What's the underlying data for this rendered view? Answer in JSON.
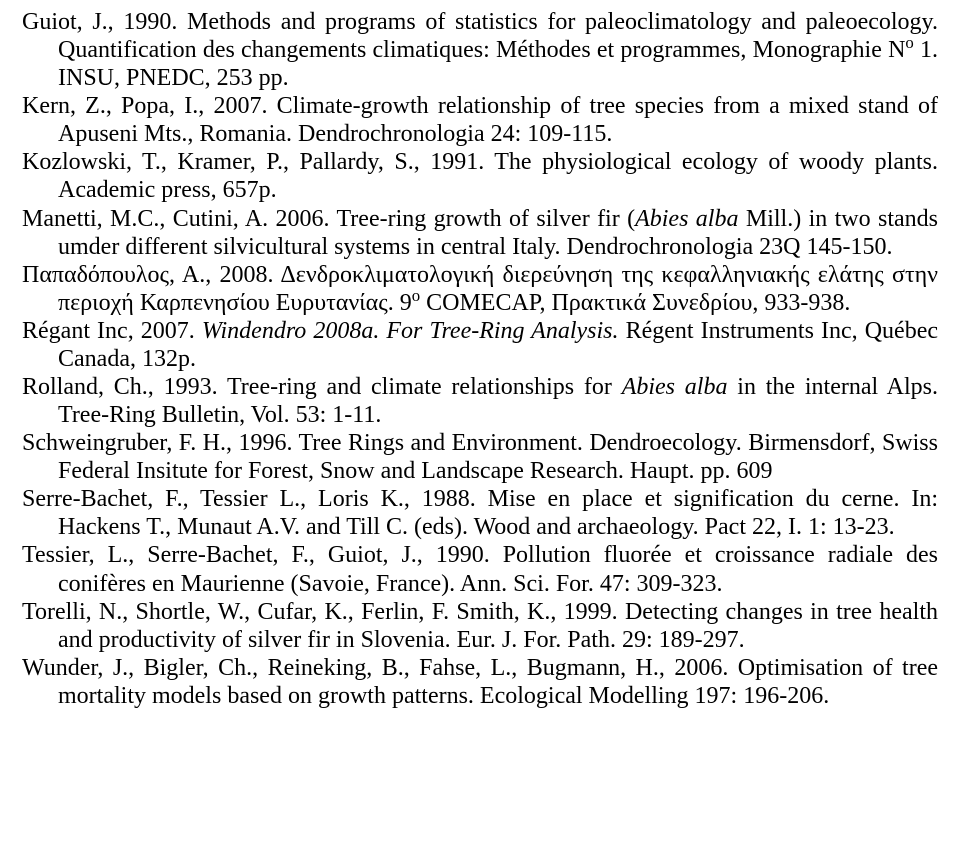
{
  "refs": {
    "guiot1990": {
      "pre": "Guiot, J., 1990. Methods and programs of statistics for paleoclimatology and paleoecology. Quantification des changements climatiques: Méthodes et programmes, Monographie N",
      "sup": "o",
      "post": " 1. INSU, PNEDC, 253 pp."
    },
    "kern2007": "Kern, Z., Popa, I., 2007. Climate-growth relationship of tree species from a mixed stand of Apuseni Mts., Romania. Dendrochronologia 24: 109-115.",
    "kozlowski1991": "Kozlowski, T., Kramer, P., Pallardy, S., 1991. The physiological ecology of woody plants. Academic press, 657p.",
    "manetti2006": {
      "a": "Manetti, M.C., Cutini, A. 2006. Tree-ring growth of silver fir (",
      "b": "Abies alba",
      "c": " Mill.) in two stands umder different silvicultural systems in central Italy. Dendrochronologia 23Q 145-150."
    },
    "papadopoulos2008": {
      "a": "Παπαδόπουλος, Α., 2008. Δενδροκλιματολογική διερεύνηση της κεφαλληνιακής ελάτης στην περιοχή Καρπενησίου Ευρυτανίας. 9",
      "sup": "ο",
      "b": " COMECAP, Πρακτικά Συνεδρίου, 933-938."
    },
    "regant2007": {
      "a": "Régant Inc, 2007. ",
      "b": "Windendro 2008a. For Tree-Ring Analysis.",
      "c": " Régent Instruments Inc, Québec Canada, 132p."
    },
    "rolland1993": {
      "a": "Rolland, Ch., 1993. Tree-ring and climate relationships for ",
      "b": "Abies alba",
      "c": " in the internal Alps. Tree-Ring Bulletin, Vol. 53: 1-11."
    },
    "schweingruber1996": "Schweingruber, F. H., 1996. Tree Rings and Environment. Dendroecology. Birmensdorf, Swiss Federal Insitute for Forest, Snow and Landscape Research. Haupt. pp. 609",
    "serrebachet1988": "Serre-Bachet, F., Tessier L., Loris K., 1988. Mise en place et signification du cerne. In: Hackens T., Munaut A.V. and Till C. (eds). Wood and archaeology. Pact 22, I. 1: 13-23.",
    "tessier1990": "Tessier, L., Serre-Bachet, F., Guiot, J., 1990. Pollution fluorée et croissance radiale des conifères en Maurienne (Savoie, France). Ann. Sci. For. 47: 309-323.",
    "torelli1999": "Torelli, N., Shortle, W., Cufar, K., Ferlin, F. Smith, K., 1999. Detecting changes in tree health and productivity of silver fir in Slovenia. Eur. J. For. Path. 29: 189-297.",
    "wunder2006": "Wunder, J., Bigler, Ch., Reineking, B., Fahse, L., Bugmann, H., 2006. Optimisation of tree mortality models based on growth patterns. Ecological Modelling 197: 196-206."
  }
}
